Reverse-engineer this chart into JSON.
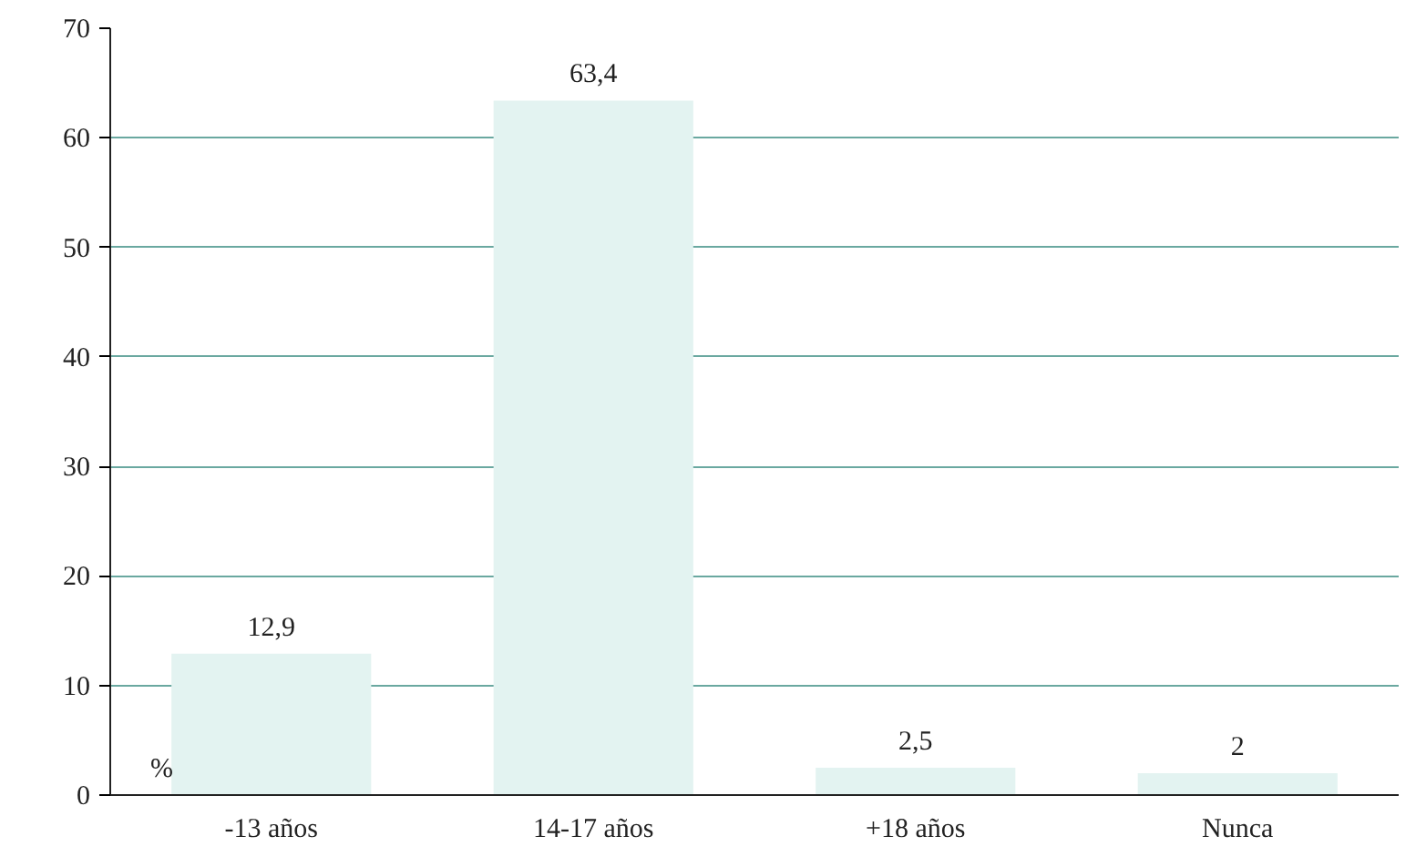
{
  "chart_data": {
    "type": "bar",
    "ylabel": "%",
    "categories": [
      "-13 años",
      "14-17 años",
      "+18 años",
      "Nunca"
    ],
    "values": [
      12.9,
      63.4,
      2.5,
      2
    ],
    "value_labels": [
      "12,9",
      "63,4",
      "2,5",
      "2"
    ],
    "color": "#e3f3f1",
    "ylim": [
      0,
      70
    ],
    "yticks": [
      0,
      10,
      20,
      30,
      40,
      50,
      60,
      70
    ],
    "grid": "y"
  }
}
